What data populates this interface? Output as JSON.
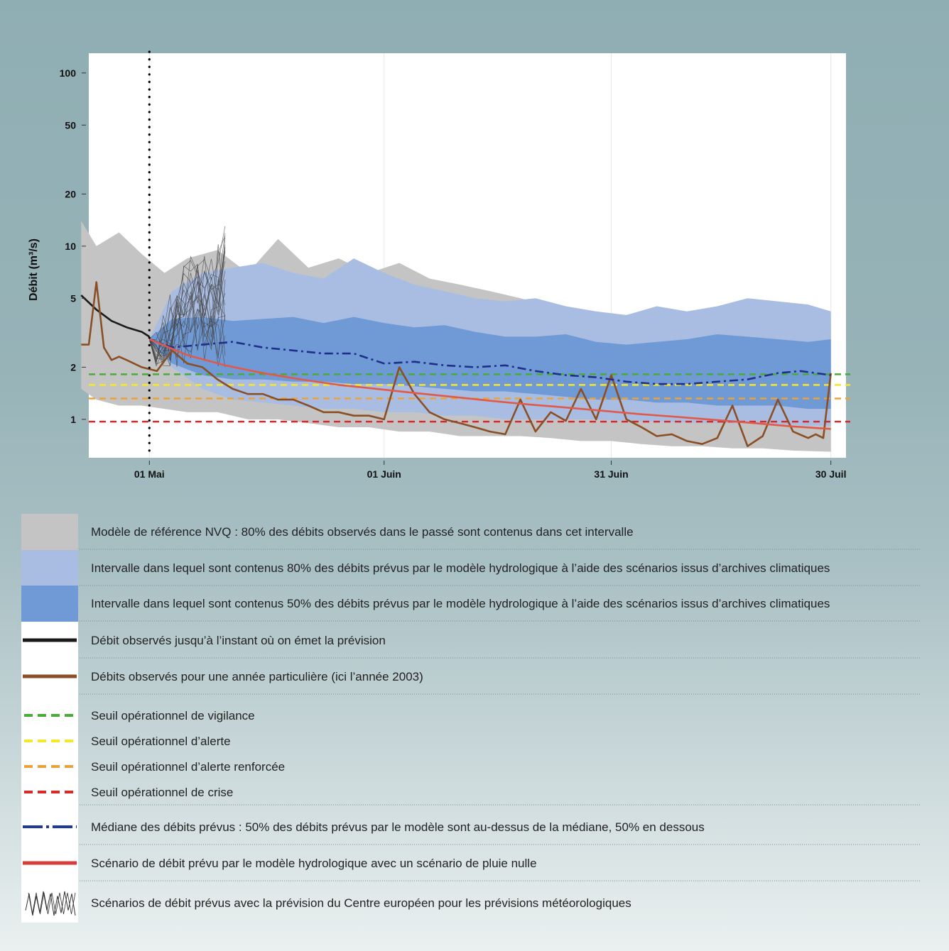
{
  "chart_data": {
    "type": "area",
    "ylabel": "Débit (m³/s)",
    "xlabel": "",
    "y_scale": "log",
    "ylim": [
      0.6,
      130
    ],
    "yticks": [
      1,
      2,
      5,
      10,
      20,
      50,
      100
    ],
    "ytick_labels": [
      "1",
      "2",
      "5",
      "10",
      "20",
      "50",
      "100"
    ],
    "xlim": [
      "2003-04-23",
      "2003-08-01"
    ],
    "xticks": [
      "2003-05-01",
      "2003-06-01",
      "2003-07-01",
      "2003-07-30"
    ],
    "xtick_labels": [
      "01 Mai",
      "01 Juin",
      "31 Juin",
      "30 Juil"
    ],
    "forecast_date": "2003-05-01",
    "series": [
      {
        "name": "Modèle de référence NVQ : 80% des débits observés dans le passé sont contenus dans cet intervalle",
        "kind": "band",
        "color": "#c4c4c4",
        "x": [
          "2003-04-22",
          "2003-04-24",
          "2003-04-27",
          "2003-04-30",
          "2003-05-03",
          "2003-05-06",
          "2003-05-10",
          "2003-05-14",
          "2003-05-18",
          "2003-05-22",
          "2003-05-26",
          "2003-05-30",
          "2003-06-03",
          "2003-06-07",
          "2003-06-11",
          "2003-06-15",
          "2003-06-19",
          "2003-06-23",
          "2003-06-27",
          "2003-07-01",
          "2003-07-05",
          "2003-07-09",
          "2003-07-13",
          "2003-07-17",
          "2003-07-21",
          "2003-07-25",
          "2003-07-30"
        ],
        "low": [
          1.5,
          1.3,
          1.2,
          1.2,
          1.15,
          1.1,
          1.1,
          1.0,
          1.0,
          0.95,
          0.9,
          0.9,
          0.85,
          0.85,
          0.8,
          0.8,
          0.8,
          0.78,
          0.75,
          0.75,
          0.72,
          0.7,
          0.7,
          0.68,
          0.68,
          0.66,
          0.65
        ],
        "high": [
          14,
          10,
          12,
          9,
          7,
          8.5,
          9.5,
          7,
          11,
          7.5,
          8.5,
          7,
          8,
          6.5,
          6,
          5.5,
          5,
          4.5,
          4.2,
          3.8,
          3.5,
          3.6,
          4.2,
          4.0,
          4.4,
          4.0,
          3.8
        ]
      },
      {
        "name": "Intervalle dans lequel sont contenus 80% des débits prévus par le modèle hydrologique à l’aide des scénarios issus d’archives climatiques",
        "kind": "band",
        "color": "#a9bde3",
        "x": [
          "2003-05-01",
          "2003-05-04",
          "2003-05-08",
          "2003-05-12",
          "2003-05-16",
          "2003-05-20",
          "2003-05-24",
          "2003-05-28",
          "2003-06-01",
          "2003-06-05",
          "2003-06-09",
          "2003-06-13",
          "2003-06-17",
          "2003-06-21",
          "2003-06-25",
          "2003-06-29",
          "2003-07-03",
          "2003-07-07",
          "2003-07-11",
          "2003-07-15",
          "2003-07-19",
          "2003-07-23",
          "2003-07-27",
          "2003-07-30"
        ],
        "low": [
          2.8,
          2.0,
          1.5,
          1.3,
          1.25,
          1.2,
          1.15,
          1.15,
          1.1,
          1.1,
          1.05,
          1.05,
          1.0,
          1.0,
          1.0,
          1.0,
          0.98,
          0.97,
          0.96,
          0.95,
          0.95,
          0.94,
          0.92,
          0.92
        ],
        "high": [
          2.9,
          5.5,
          7.0,
          7.5,
          8.0,
          7.0,
          6.5,
          8.5,
          7.0,
          6.0,
          5.5,
          5.0,
          4.8,
          5.0,
          4.5,
          4.2,
          4.0,
          4.5,
          4.2,
          4.5,
          5.0,
          4.8,
          4.6,
          4.2
        ]
      },
      {
        "name": "Intervalle dans lequel sont contenus 50% des débits prévus par le modèle hydrologique à l’aide des scénarios issus d’archives climatiques",
        "kind": "band",
        "color": "#6f9ad6",
        "x": [
          "2003-05-01",
          "2003-05-04",
          "2003-05-08",
          "2003-05-12",
          "2003-05-16",
          "2003-05-20",
          "2003-05-24",
          "2003-05-28",
          "2003-06-01",
          "2003-06-05",
          "2003-06-09",
          "2003-06-13",
          "2003-06-17",
          "2003-06-21",
          "2003-06-25",
          "2003-06-29",
          "2003-07-03",
          "2003-07-07",
          "2003-07-11",
          "2003-07-15",
          "2003-07-19",
          "2003-07-23",
          "2003-07-27",
          "2003-07-30"
        ],
        "low": [
          2.8,
          2.1,
          1.8,
          1.7,
          1.7,
          1.65,
          1.65,
          1.6,
          1.6,
          1.55,
          1.5,
          1.45,
          1.45,
          1.4,
          1.35,
          1.3,
          1.3,
          1.25,
          1.25,
          1.2,
          1.2,
          1.2,
          1.15,
          1.15
        ],
        "high": [
          2.9,
          3.8,
          3.9,
          3.7,
          3.8,
          3.9,
          3.6,
          3.9,
          3.6,
          3.4,
          3.5,
          3.2,
          3.0,
          3.0,
          3.1,
          2.8,
          2.7,
          2.8,
          2.9,
          3.1,
          3.0,
          2.9,
          2.8,
          2.9
        ]
      },
      {
        "name": "Débit observés jusqu’à l’instant où on émet la prévision",
        "kind": "line",
        "color": "#1a1a1a",
        "style": "solid",
        "x": [
          "2003-04-22",
          "2003-04-24",
          "2003-04-26",
          "2003-04-28",
          "2003-04-30",
          "2003-05-01"
        ],
        "y": [
          5.2,
          4.3,
          3.7,
          3.4,
          3.2,
          3.0
        ]
      },
      {
        "name": "Débits observés pour une année particulière (ici l’année 2003)",
        "kind": "line",
        "color": "#8a4f25",
        "style": "solid",
        "x": [
          "2003-04-22",
          "2003-04-23",
          "2003-04-24",
          "2003-04-25",
          "2003-04-26",
          "2003-04-27",
          "2003-04-28",
          "2003-04-30",
          "2003-05-02",
          "2003-05-04",
          "2003-05-06",
          "2003-05-08",
          "2003-05-10",
          "2003-05-12",
          "2003-05-14",
          "2003-05-16",
          "2003-05-18",
          "2003-05-20",
          "2003-05-22",
          "2003-05-24",
          "2003-05-26",
          "2003-05-28",
          "2003-05-30",
          "2003-06-01",
          "2003-06-03",
          "2003-06-05",
          "2003-06-07",
          "2003-06-09",
          "2003-06-11",
          "2003-06-13",
          "2003-06-15",
          "2003-06-17",
          "2003-06-19",
          "2003-06-21",
          "2003-06-23",
          "2003-06-25",
          "2003-06-27",
          "2003-06-29",
          "2003-07-01",
          "2003-07-03",
          "2003-07-05",
          "2003-07-07",
          "2003-07-09",
          "2003-07-11",
          "2003-07-13",
          "2003-07-15",
          "2003-07-17",
          "2003-07-19",
          "2003-07-21",
          "2003-07-23",
          "2003-07-25",
          "2003-07-27",
          "2003-07-28",
          "2003-07-29",
          "2003-07-30"
        ],
        "y": [
          2.7,
          2.7,
          6.2,
          2.6,
          2.2,
          2.3,
          2.2,
          2.0,
          1.9,
          2.5,
          2.1,
          2.0,
          1.7,
          1.5,
          1.4,
          1.4,
          1.3,
          1.3,
          1.2,
          1.1,
          1.1,
          1.05,
          1.05,
          1.0,
          2.0,
          1.4,
          1.1,
          1.0,
          0.95,
          0.9,
          0.85,
          0.82,
          1.3,
          0.85,
          1.1,
          0.98,
          1.5,
          1.0,
          1.8,
          1.0,
          0.9,
          0.8,
          0.82,
          0.75,
          0.72,
          0.78,
          1.2,
          0.7,
          0.8,
          1.3,
          0.85,
          0.78,
          0.82,
          0.78,
          1.85
        ]
      },
      {
        "name": "Seuil opérationnel de vigilance",
        "kind": "hline",
        "color": "#4aaa3c",
        "style": "dashed",
        "y": 1.82
      },
      {
        "name": "Seuil opérationnel d’alerte",
        "kind": "hline",
        "color": "#f5e82a",
        "style": "dashed",
        "y": 1.58
      },
      {
        "name": "Seuil opérationnel d’alerte renforcée",
        "kind": "hline",
        "color": "#e8a33d",
        "style": "dashed",
        "y": 1.32
      },
      {
        "name": "Seuil opérationnel de crise",
        "kind": "hline",
        "color": "#d92a2a",
        "style": "dashed",
        "y": 0.97
      },
      {
        "name": "Médiane des débits prévus : 50% des débits prévus par le modèle sont au-dessus de la médiane, 50% en dessous",
        "kind": "line",
        "color": "#1f2f8a",
        "style": "dashdot",
        "x": [
          "2003-05-01",
          "2003-05-04",
          "2003-05-08",
          "2003-05-12",
          "2003-05-16",
          "2003-05-20",
          "2003-05-24",
          "2003-05-28",
          "2003-06-01",
          "2003-06-05",
          "2003-06-09",
          "2003-06-13",
          "2003-06-17",
          "2003-06-21",
          "2003-06-25",
          "2003-06-29",
          "2003-07-03",
          "2003-07-07",
          "2003-07-11",
          "2003-07-15",
          "2003-07-19",
          "2003-07-23",
          "2003-07-26",
          "2003-07-30"
        ],
        "y": [
          2.9,
          2.6,
          2.7,
          2.8,
          2.6,
          2.5,
          2.4,
          2.4,
          2.1,
          2.15,
          2.05,
          2.0,
          2.05,
          1.9,
          1.8,
          1.75,
          1.65,
          1.6,
          1.6,
          1.65,
          1.7,
          1.85,
          1.9,
          1.8
        ]
      },
      {
        "name": "Scénario de débit prévu par le modèle hydrologique avec un scénario de pluie nulle",
        "kind": "line",
        "color": "#e05a4a",
        "style": "solid",
        "x": [
          "2003-05-01",
          "2003-05-06",
          "2003-05-11",
          "2003-05-16",
          "2003-05-21",
          "2003-05-26",
          "2003-05-31",
          "2003-06-05",
          "2003-06-10",
          "2003-06-15",
          "2003-06-20",
          "2003-06-25",
          "2003-06-30",
          "2003-07-05",
          "2003-07-10",
          "2003-07-15",
          "2003-07-20",
          "2003-07-25",
          "2003-07-30"
        ],
        "y": [
          2.9,
          2.35,
          2.05,
          1.85,
          1.7,
          1.58,
          1.5,
          1.42,
          1.35,
          1.28,
          1.22,
          1.17,
          1.12,
          1.07,
          1.03,
          0.99,
          0.95,
          0.91,
          0.88
        ]
      },
      {
        "name": "Scénarios de débit prévus avec la prévision du Centre européen pour les prévisions météorologiques",
        "kind": "ensemble",
        "color": "#444444",
        "x_start": "2003-05-01",
        "x_end": "2003-05-11",
        "members": 20,
        "y_range": [
          2.0,
          16
        ]
      }
    ]
  },
  "legend": [
    {
      "symbol": "swatch",
      "color": "#c4c4c4",
      "label": "Modèle de référence NVQ : 80% des débits observés dans le passé sont contenus dans cet intervalle"
    },
    {
      "symbol": "swatch",
      "color": "#a9bde3",
      "label": "Intervalle dans lequel sont contenus 80% des débits prévus par le modèle hydrologique à l’aide des scénarios issus d’archives climatiques"
    },
    {
      "symbol": "swatch",
      "color": "#6f9ad6",
      "label": "Intervalle dans lequel sont contenus 50% des débits prévus par le modèle hydrologique à l’aide des scénarios issus d’archives climatiques"
    },
    {
      "symbol": "line",
      "color": "#1a1a1a",
      "label": "Débit observés jusqu’à l’instant où on émet la prévision"
    },
    {
      "symbol": "line",
      "color": "#8a4f25",
      "label": "Débits observés pour une année particulière (ici l’année 2003)"
    },
    {
      "symbol": "dashed",
      "color": "#4aaa3c",
      "label": "Seuil opérationnel de vigilance"
    },
    {
      "symbol": "dashed",
      "color": "#f5e82a",
      "label": "Seuil opérationnel d’alerte"
    },
    {
      "symbol": "dashed",
      "color": "#e8a33d",
      "label": "Seuil opérationnel d’alerte renforcée"
    },
    {
      "symbol": "dashed",
      "color": "#d92a2a",
      "label": "Seuil opérationnel de crise"
    },
    {
      "symbol": "dashdot",
      "color": "#1f3a9a",
      "label": "Médiane des débits prévus : 50% des débits prévus par le modèle sont au-dessus de la médiane, 50% en dessous"
    },
    {
      "symbol": "line",
      "color": "#d93a3a",
      "label": "Scénario de débit prévu par le modèle hydrologique avec un scénario de pluie nulle"
    },
    {
      "symbol": "zigzag",
      "color": "#333333",
      "label": "Scénarios de débit prévus avec la prévision du Centre européen pour les prévisions météorologiques"
    }
  ]
}
